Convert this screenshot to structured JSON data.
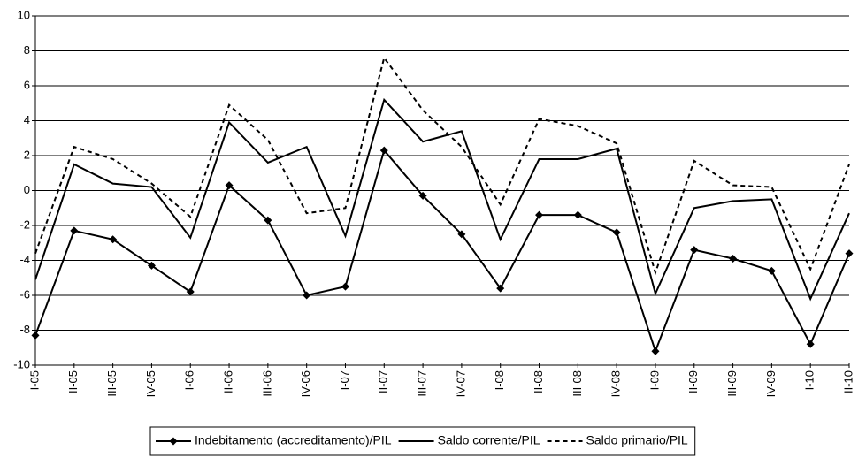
{
  "chart_data": {
    "type": "line",
    "categories": [
      "I-05",
      "II-05",
      "III-05",
      "IV-05",
      "I-06",
      "II-06",
      "III-06",
      "IV-06",
      "I-07",
      "II-07",
      "III-07",
      "IV-07",
      "I-08",
      "II-08",
      "III-08",
      "IV-08",
      "I-09",
      "II-09",
      "III-09",
      "IV-09",
      "I-10",
      "II-10"
    ],
    "series": [
      {
        "name": "Indebitamento (accreditamento)/PIL",
        "color": "#000000",
        "marker": "diamond",
        "dash": false,
        "values": [
          -8.3,
          -2.3,
          -2.8,
          -4.3,
          -5.8,
          0.3,
          -1.7,
          -6.0,
          -5.5,
          2.3,
          -0.3,
          -2.5,
          -5.6,
          -1.4,
          -1.4,
          -2.4,
          -9.2,
          -3.4,
          -3.9,
          -4.6,
          -8.8,
          -3.6
        ]
      },
      {
        "name": "Saldo corrente/PIL",
        "color": "#000000",
        "marker": "none",
        "dash": false,
        "values": [
          -5.1,
          1.5,
          0.4,
          0.2,
          -2.7,
          3.9,
          1.6,
          2.5,
          -2.6,
          5.2,
          2.8,
          3.4,
          -2.8,
          1.8,
          1.8,
          2.4,
          -5.9,
          -1.0,
          -0.6,
          -0.5,
          -6.2,
          -1.3
        ]
      },
      {
        "name": "Saldo primario/PIL",
        "color": "#000000",
        "marker": "none",
        "dash": true,
        "values": [
          -3.6,
          2.5,
          1.8,
          0.4,
          -1.5,
          4.9,
          2.9,
          -1.3,
          -1.0,
          7.6,
          4.6,
          2.5,
          -0.8,
          4.1,
          3.7,
          2.7,
          -4.7,
          1.7,
          0.3,
          0.2,
          -4.5,
          1.5
        ]
      }
    ],
    "ylim": [
      -10,
      10
    ],
    "yticks": [
      -10,
      -8,
      -6,
      -4,
      -2,
      0,
      2,
      4,
      6,
      8,
      10
    ],
    "grid": true,
    "legend": "bottom"
  }
}
